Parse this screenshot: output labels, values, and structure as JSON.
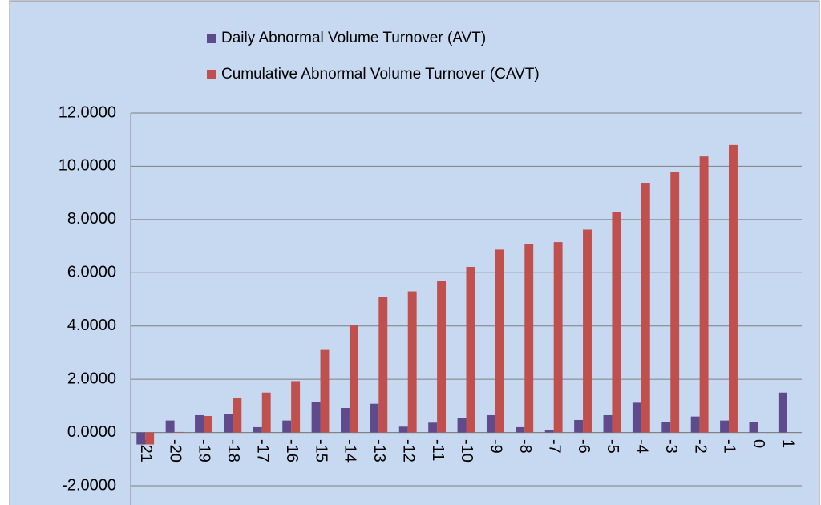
{
  "chart_data": {
    "type": "bar",
    "categories": [
      "-21",
      "-20",
      "-19",
      "-18",
      "-17",
      "-16",
      "-15",
      "-14",
      "-13",
      "-12",
      "-11",
      "-10",
      "-9",
      "-8",
      "-7",
      "-6",
      "-5",
      "-4",
      "-3",
      "-2",
      "-1",
      "0",
      "1"
    ],
    "series": [
      {
        "name": "Daily Abnormal Volume Turnover (AVT)",
        "color": "#5f4a8b",
        "values": [
          -0.45,
          0.45,
          0.65,
          0.68,
          0.2,
          0.45,
          1.15,
          0.92,
          1.08,
          0.22,
          0.37,
          0.55,
          0.65,
          0.2,
          0.08,
          0.47,
          0.65,
          1.12,
          0.4,
          0.6,
          0.45,
          0.4,
          1.5
        ]
      },
      {
        "name": "Cumulative Abnormal Volume Turnover (CAVT)",
        "color": "#c0504d",
        "values": [
          -0.45,
          0.02,
          0.62,
          1.3,
          1.5,
          1.93,
          3.1,
          4.02,
          5.08,
          5.3,
          5.68,
          6.22,
          6.87,
          7.07,
          7.15,
          7.62,
          8.27,
          9.38,
          9.78,
          10.37,
          10.8,
          null,
          null
        ]
      }
    ],
    "ylim": [
      -2,
      12
    ],
    "yticks": [
      {
        "value": -2,
        "label": "-2.0000"
      },
      {
        "value": 0,
        "label": "0.0000"
      },
      {
        "value": 2,
        "label": "2.0000"
      },
      {
        "value": 4,
        "label": "4.0000"
      },
      {
        "value": 6,
        "label": "6.0000"
      },
      {
        "value": 8,
        "label": "8.0000"
      },
      {
        "value": 10,
        "label": "10.0000"
      },
      {
        "value": 12,
        "label": "12.0000"
      }
    ],
    "grid": true,
    "legend": "top"
  }
}
